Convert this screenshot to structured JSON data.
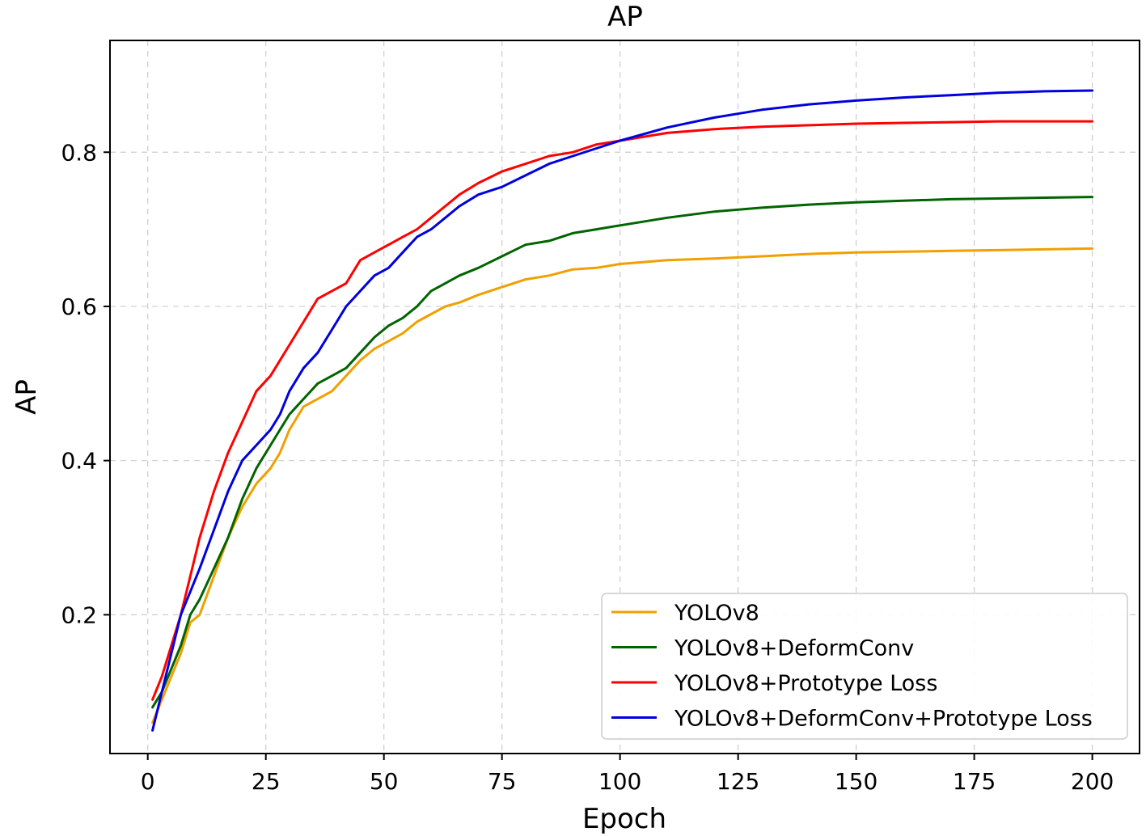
{
  "chart_data": {
    "type": "line",
    "title": "AP",
    "xlabel": "Epoch",
    "ylabel": "AP",
    "xlim": [
      -8,
      210
    ],
    "ylim": [
      0.02,
      0.945
    ],
    "xticks": [
      0,
      25,
      50,
      75,
      100,
      125,
      150,
      175,
      200
    ],
    "xtick_labels": [
      "0",
      "25",
      "50",
      "75",
      "100",
      "125",
      "150",
      "175",
      "200"
    ],
    "yticks": [
      0.2,
      0.4,
      0.6,
      0.8
    ],
    "ytick_labels": [
      "0.2",
      "0.4",
      "0.6",
      "0.8"
    ],
    "grid": true,
    "legend_position": "lower-right",
    "series": [
      {
        "name": "YOLOv8",
        "color": "#f0a000",
        "x": [
          1,
          3,
          5,
          7,
          9,
          11,
          14,
          17,
          20,
          23,
          26,
          28,
          30,
          33,
          36,
          39,
          42,
          45,
          48,
          51,
          54,
          57,
          60,
          63,
          66,
          70,
          75,
          80,
          85,
          90,
          95,
          100,
          110,
          120,
          130,
          140,
          150,
          160,
          170,
          180,
          190,
          200
        ],
        "values": [
          0.06,
          0.09,
          0.12,
          0.15,
          0.19,
          0.2,
          0.25,
          0.3,
          0.34,
          0.37,
          0.39,
          0.41,
          0.44,
          0.47,
          0.48,
          0.49,
          0.51,
          0.53,
          0.545,
          0.555,
          0.565,
          0.58,
          0.59,
          0.6,
          0.605,
          0.615,
          0.625,
          0.635,
          0.64,
          0.648,
          0.65,
          0.655,
          0.66,
          0.662,
          0.665,
          0.668,
          0.67,
          0.671,
          0.672,
          0.673,
          0.674,
          0.675
        ]
      },
      {
        "name": "YOLOv8+DeformConv",
        "color": "#006400",
        "x": [
          1,
          3,
          5,
          7,
          9,
          11,
          14,
          17,
          20,
          23,
          26,
          28,
          30,
          33,
          36,
          39,
          42,
          45,
          48,
          51,
          54,
          57,
          60,
          63,
          66,
          70,
          75,
          80,
          85,
          90,
          95,
          100,
          110,
          120,
          130,
          140,
          150,
          160,
          170,
          180,
          190,
          200
        ],
        "values": [
          0.08,
          0.1,
          0.13,
          0.16,
          0.2,
          0.22,
          0.26,
          0.3,
          0.35,
          0.39,
          0.42,
          0.44,
          0.46,
          0.48,
          0.5,
          0.51,
          0.52,
          0.54,
          0.56,
          0.575,
          0.585,
          0.6,
          0.62,
          0.63,
          0.64,
          0.65,
          0.665,
          0.68,
          0.685,
          0.695,
          0.7,
          0.705,
          0.715,
          0.723,
          0.728,
          0.732,
          0.735,
          0.737,
          0.739,
          0.74,
          0.741,
          0.742
        ]
      },
      {
        "name": "YOLOv8+Prototype Loss",
        "color": "#ff0000",
        "x": [
          1,
          3,
          5,
          7,
          9,
          11,
          14,
          17,
          20,
          23,
          26,
          28,
          30,
          33,
          36,
          39,
          42,
          45,
          48,
          51,
          54,
          57,
          60,
          63,
          66,
          70,
          75,
          80,
          85,
          90,
          95,
          100,
          110,
          120,
          130,
          140,
          150,
          160,
          170,
          180,
          190,
          200
        ],
        "values": [
          0.09,
          0.12,
          0.16,
          0.2,
          0.25,
          0.3,
          0.36,
          0.41,
          0.45,
          0.49,
          0.51,
          0.53,
          0.55,
          0.58,
          0.61,
          0.62,
          0.63,
          0.66,
          0.67,
          0.68,
          0.69,
          0.7,
          0.715,
          0.73,
          0.745,
          0.76,
          0.775,
          0.785,
          0.795,
          0.8,
          0.81,
          0.815,
          0.825,
          0.83,
          0.833,
          0.835,
          0.837,
          0.838,
          0.839,
          0.84,
          0.84,
          0.84
        ]
      },
      {
        "name": "YOLOv8+DeformConv+Prototype Loss",
        "color": "#0000e0",
        "x": [
          1,
          3,
          5,
          7,
          9,
          11,
          14,
          17,
          20,
          23,
          26,
          28,
          30,
          33,
          36,
          39,
          42,
          45,
          48,
          51,
          54,
          57,
          60,
          63,
          66,
          70,
          75,
          80,
          85,
          90,
          95,
          100,
          110,
          120,
          130,
          140,
          150,
          160,
          170,
          180,
          190,
          200
        ],
        "values": [
          0.05,
          0.1,
          0.15,
          0.2,
          0.23,
          0.26,
          0.31,
          0.36,
          0.4,
          0.42,
          0.44,
          0.46,
          0.49,
          0.52,
          0.54,
          0.57,
          0.6,
          0.62,
          0.64,
          0.65,
          0.67,
          0.69,
          0.7,
          0.715,
          0.73,
          0.745,
          0.755,
          0.77,
          0.785,
          0.795,
          0.805,
          0.815,
          0.832,
          0.845,
          0.855,
          0.862,
          0.867,
          0.871,
          0.874,
          0.877,
          0.879,
          0.88
        ]
      }
    ]
  }
}
